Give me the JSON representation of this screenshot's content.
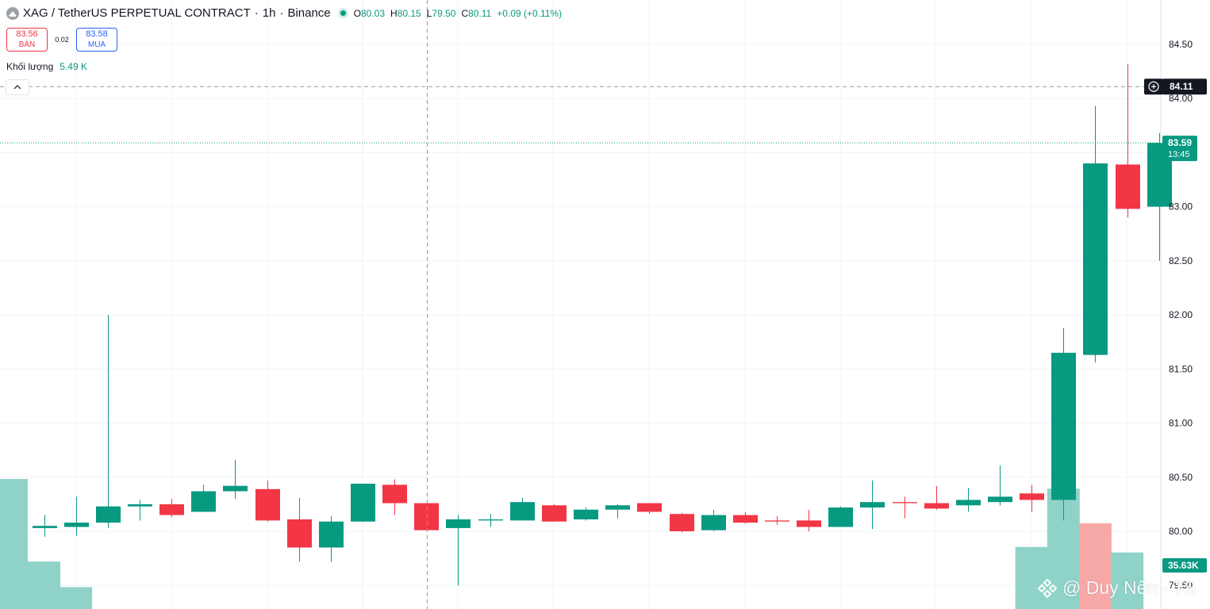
{
  "header": {
    "symbol": "XAG / TetherUS PERPETUAL CONTRACT",
    "interval": "1h",
    "exchange": "Binance",
    "sep": "·",
    "ohlc": {
      "o_label": "O",
      "o": "80.03",
      "h_label": "H",
      "h": "80.15",
      "l_label": "L",
      "l": "79.50",
      "c_label": "C",
      "c": "80.11",
      "change": "+0.09 (+0.11%)"
    }
  },
  "trade": {
    "sell_price": "83.56",
    "sell_label": "BÁN",
    "spread": "0.02",
    "buy_price": "83.58",
    "buy_label": "MUA"
  },
  "volume_legend": {
    "label": "Khối lượng",
    "value": "5.49 K"
  },
  "watermark": "@ Duy Nến - TS",
  "colors": {
    "up": "#089981",
    "down": "#f23645",
    "up_volume": "#8fd3c8",
    "down_volume": "#f7a9a7",
    "grid": "#f0f3fa",
    "text": "#131722"
  },
  "icons": {
    "symbol": "silver-coin-icon",
    "collapse": "chevron-up-icon",
    "crosshair": "plus-circle-icon",
    "watermark": "binance-logo-icon"
  },
  "chart_data": {
    "type": "candlestick",
    "ylim": [
      79.25,
      85.0
    ],
    "y_ticks": [
      "84.50",
      "84.00",
      "83.00",
      "82.50",
      "82.00",
      "81.50",
      "81.00",
      "80.50",
      "80.00",
      "79.50"
    ],
    "candles": [
      {
        "o": 80.03,
        "h": 80.15,
        "l": 79.95,
        "c": 80.05
      },
      {
        "o": 80.04,
        "h": 80.32,
        "l": 79.96,
        "c": 80.08
      },
      {
        "o": 80.08,
        "h": 82.0,
        "l": 80.03,
        "c": 80.23
      },
      {
        "o": 80.23,
        "h": 80.29,
        "l": 80.1,
        "c": 80.25
      },
      {
        "o": 80.25,
        "h": 80.3,
        "l": 80.13,
        "c": 80.15
      },
      {
        "o": 80.18,
        "h": 80.43,
        "l": 80.18,
        "c": 80.37
      },
      {
        "o": 80.37,
        "h": 80.66,
        "l": 80.3,
        "c": 80.42
      },
      {
        "o": 80.39,
        "h": 80.47,
        "l": 80.09,
        "c": 80.1
      },
      {
        "o": 80.11,
        "h": 80.31,
        "l": 79.72,
        "c": 79.85
      },
      {
        "o": 79.85,
        "h": 80.14,
        "l": 79.72,
        "c": 80.09
      },
      {
        "o": 80.09,
        "h": 80.44,
        "l": 80.09,
        "c": 80.44
      },
      {
        "o": 80.43,
        "h": 80.48,
        "l": 80.15,
        "c": 80.26
      },
      {
        "o": 80.26,
        "h": 80.26,
        "l": 80.01,
        "c": 80.01
      },
      {
        "o": 80.03,
        "h": 80.15,
        "l": 79.5,
        "c": 80.11
      },
      {
        "o": 80.1,
        "h": 80.16,
        "l": 80.04,
        "c": 80.11
      },
      {
        "o": 80.1,
        "h": 80.31,
        "l": 80.1,
        "c": 80.27
      },
      {
        "o": 80.24,
        "h": 80.25,
        "l": 80.09,
        "c": 80.09
      },
      {
        "o": 80.11,
        "h": 80.22,
        "l": 80.1,
        "c": 80.2
      },
      {
        "o": 80.2,
        "h": 80.25,
        "l": 80.12,
        "c": 80.24
      },
      {
        "o": 80.26,
        "h": 80.26,
        "l": 80.16,
        "c": 80.18
      },
      {
        "o": 80.16,
        "h": 80.17,
        "l": 79.99,
        "c": 80.0
      },
      {
        "o": 80.01,
        "h": 80.2,
        "l": 80.0,
        "c": 80.15
      },
      {
        "o": 80.15,
        "h": 80.18,
        "l": 80.07,
        "c": 80.08
      },
      {
        "o": 80.1,
        "h": 80.14,
        "l": 80.06,
        "c": 80.09
      },
      {
        "o": 80.1,
        "h": 80.2,
        "l": 80.0,
        "c": 80.04
      },
      {
        "o": 80.04,
        "h": 80.23,
        "l": 80.04,
        "c": 80.22
      },
      {
        "o": 80.22,
        "h": 80.47,
        "l": 80.02,
        "c": 80.27
      },
      {
        "o": 80.27,
        "h": 80.32,
        "l": 80.12,
        "c": 80.26
      },
      {
        "o": 80.26,
        "h": 80.42,
        "l": 80.2,
        "c": 80.21
      },
      {
        "o": 80.24,
        "h": 80.4,
        "l": 80.18,
        "c": 80.29
      },
      {
        "o": 80.27,
        "h": 80.61,
        "l": 80.24,
        "c": 80.32
      },
      {
        "o": 80.35,
        "h": 80.43,
        "l": 80.18,
        "c": 80.29
      },
      {
        "o": 80.29,
        "h": 81.88,
        "l": 80.1,
        "c": 81.65
      },
      {
        "o": 81.63,
        "h": 83.93,
        "l": 81.56,
        "c": 83.4
      },
      {
        "o": 83.39,
        "h": 84.32,
        "l": 82.9,
        "c": 82.98
      },
      {
        "o": 83.0,
        "h": 83.68,
        "l": 82.5,
        "c": 83.59
      }
    ],
    "volume": {
      "ylim": [
        0,
        50
      ],
      "bars": [
        {
          "index": -1,
          "value": 35.63,
          "dir": "up"
        },
        {
          "index": 0,
          "value": 13.0,
          "dir": "up"
        },
        {
          "index": 1,
          "value": 6.0,
          "dir": "up"
        },
        {
          "index": 31,
          "value": 17.0,
          "dir": "up"
        },
        {
          "index": 32,
          "value": 33.0,
          "dir": "up"
        },
        {
          "index": 33,
          "value": 23.5,
          "dir": "down"
        },
        {
          "index": 34,
          "value": 15.5,
          "dir": "up"
        }
      ]
    },
    "price_labels": [
      {
        "value": 84.11,
        "text": "84.11",
        "style": "crosshair"
      },
      {
        "value": 83.59,
        "text": "83.59",
        "sub": "13:45",
        "style": "last"
      }
    ],
    "volume_label": {
      "text": "35.63K"
    }
  }
}
